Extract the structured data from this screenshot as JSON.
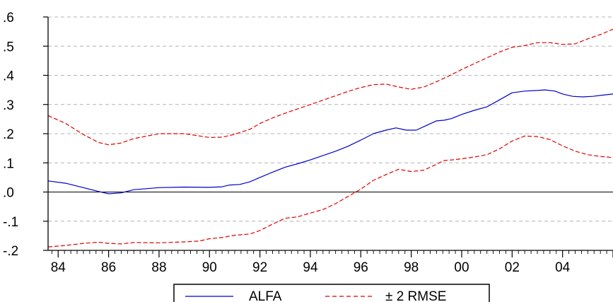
{
  "chart_data": {
    "type": "line",
    "title": "",
    "xlabel": "",
    "ylabel": "",
    "xlim": [
      1983.6,
      2006.0
    ],
    "ylim": [
      -0.2,
      0.6
    ],
    "x_ticks": [
      {
        "value": 1984,
        "label": "84"
      },
      {
        "value": 1986,
        "label": "86"
      },
      {
        "value": 1988,
        "label": "88"
      },
      {
        "value": 1990,
        "label": "90"
      },
      {
        "value": 1992,
        "label": "92"
      },
      {
        "value": 1994,
        "label": "94"
      },
      {
        "value": 1996,
        "label": "96"
      },
      {
        "value": 1998,
        "label": "98"
      },
      {
        "value": 2000,
        "label": "00"
      },
      {
        "value": 2002,
        "label": "02"
      },
      {
        "value": 2004,
        "label": "04"
      }
    ],
    "y_ticks": [
      {
        "value": 0.6,
        "label": ".6"
      },
      {
        "value": 0.5,
        "label": ".5"
      },
      {
        "value": 0.4,
        "label": ".4"
      },
      {
        "value": 0.3,
        "label": ".3"
      },
      {
        "value": 0.2,
        "label": ".2"
      },
      {
        "value": 0.1,
        "label": ".1"
      },
      {
        "value": 0.0,
        "label": ".0"
      },
      {
        "value": -0.1,
        "label": "-.1"
      },
      {
        "value": -0.2,
        "label": "-.2"
      }
    ],
    "grid": "horizontal-dashed",
    "zero_line": true,
    "legend_position": "bottom-center",
    "series": [
      {
        "name": "ALFA",
        "color": "#0000cc",
        "style": "solid",
        "x": [
          1983.6,
          1984.3,
          1985.0,
          1985.6,
          1986.0,
          1986.5,
          1987.0,
          1988.0,
          1989.0,
          1990.0,
          1990.5,
          1990.8,
          1991.2,
          1991.6,
          1992.0,
          1992.5,
          1993.0,
          1993.5,
          1994.0,
          1994.5,
          1995.0,
          1995.5,
          1996.0,
          1996.5,
          1997.0,
          1997.4,
          1997.8,
          1998.2,
          1998.6,
          1999.0,
          1999.3,
          1999.6,
          2000.0,
          2000.5,
          2001.0,
          2001.5,
          2002.0,
          2002.5,
          2003.0,
          2003.3,
          2003.7,
          2004.0,
          2004.4,
          2004.8,
          2005.2,
          2005.6,
          2006.0
        ],
        "y": [
          0.038,
          0.03,
          0.015,
          0.002,
          -0.006,
          -0.003,
          0.008,
          0.015,
          0.017,
          0.016,
          0.018,
          0.024,
          0.026,
          0.035,
          0.05,
          0.068,
          0.085,
          0.097,
          0.11,
          0.125,
          0.14,
          0.157,
          0.178,
          0.2,
          0.212,
          0.22,
          0.212,
          0.212,
          0.228,
          0.244,
          0.246,
          0.252,
          0.266,
          0.28,
          0.292,
          0.316,
          0.34,
          0.346,
          0.348,
          0.35,
          0.346,
          0.336,
          0.328,
          0.326,
          0.328,
          0.332,
          0.336
        ]
      },
      {
        "name": "± 2 RMSE",
        "color": "#e00000",
        "style": "dashed",
        "x": [
          1983.6,
          1984.3,
          1985.0,
          1985.6,
          1986.0,
          1986.5,
          1987.0,
          1988.0,
          1989.0,
          1990.0,
          1990.5,
          1991.0,
          1991.6,
          1992.0,
          1992.5,
          1993.0,
          1993.5,
          1994.0,
          1994.5,
          1995.0,
          1995.5,
          1996.0,
          1996.5,
          1997.0,
          1997.5,
          1998.0,
          1998.5,
          1999.0,
          1999.5,
          2000.0,
          2000.5,
          2001.0,
          2001.5,
          2002.0,
          2002.5,
          2003.0,
          2003.5,
          2004.0,
          2004.5,
          2005.0,
          2005.5,
          2006.0
        ],
        "y": [
          0.262,
          0.235,
          0.197,
          0.17,
          0.162,
          0.168,
          0.183,
          0.2,
          0.2,
          0.187,
          0.188,
          0.198,
          0.215,
          0.235,
          0.254,
          0.27,
          0.285,
          0.3,
          0.315,
          0.33,
          0.345,
          0.358,
          0.368,
          0.37,
          0.36,
          0.352,
          0.36,
          0.378,
          0.398,
          0.42,
          0.44,
          0.46,
          0.48,
          0.496,
          0.502,
          0.512,
          0.512,
          0.506,
          0.508,
          0.525,
          0.54,
          0.558
        ]
      },
      {
        "name": "",
        "color": "#e00000",
        "style": "dashed",
        "x": [
          1983.6,
          1984.3,
          1985.0,
          1985.6,
          1986.0,
          1986.5,
          1987.0,
          1988.0,
          1989.0,
          1989.6,
          1990.0,
          1990.5,
          1991.0,
          1991.6,
          1992.0,
          1992.5,
          1993.0,
          1993.5,
          1994.0,
          1994.5,
          1995.0,
          1995.5,
          1996.0,
          1996.5,
          1997.0,
          1997.5,
          1998.0,
          1998.5,
          1999.0,
          1999.3,
          1999.6,
          2000.0,
          2000.5,
          2001.0,
          2001.5,
          2002.0,
          2002.5,
          2003.0,
          2003.5,
          2004.0,
          2004.5,
          2005.0,
          2005.5,
          2006.0
        ],
        "y": [
          -0.188,
          -0.183,
          -0.176,
          -0.172,
          -0.176,
          -0.178,
          -0.173,
          -0.174,
          -0.171,
          -0.168,
          -0.16,
          -0.156,
          -0.148,
          -0.144,
          -0.132,
          -0.11,
          -0.09,
          -0.085,
          -0.072,
          -0.06,
          -0.04,
          -0.015,
          0.01,
          0.04,
          0.06,
          0.078,
          0.07,
          0.075,
          0.095,
          0.108,
          0.11,
          0.114,
          0.12,
          0.128,
          0.148,
          0.175,
          0.192,
          0.19,
          0.18,
          0.158,
          0.14,
          0.128,
          0.122,
          0.118
        ]
      }
    ]
  },
  "legend": {
    "items": [
      {
        "label": "ALFA",
        "color": "#0000cc",
        "style": "solid"
      },
      {
        "label": "± 2 RMSE",
        "color": "#e00000",
        "style": "dashed"
      }
    ]
  }
}
